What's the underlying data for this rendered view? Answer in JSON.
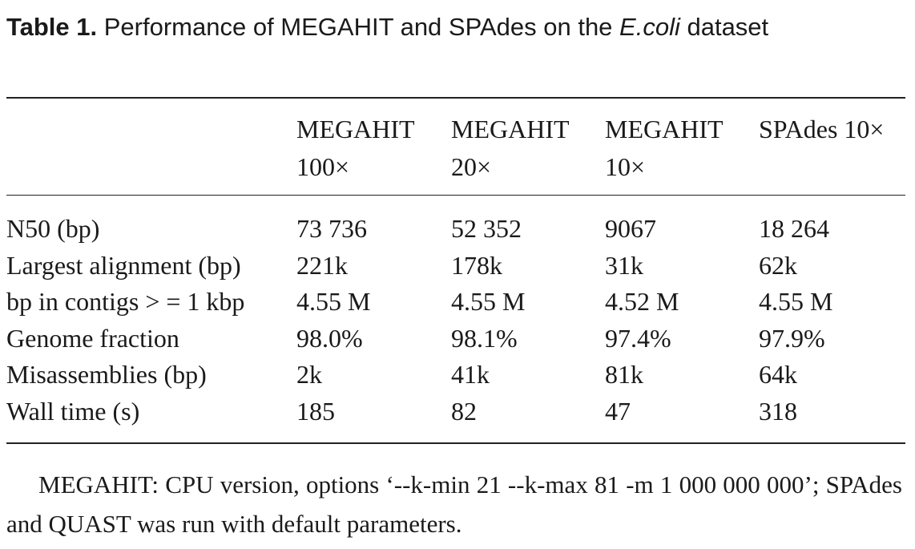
{
  "caption": {
    "label": "Table 1.",
    "text_before": " Performance of MEGAHIT and SPAdes on the ",
    "italic": "E.coli",
    "text_after": " dataset"
  },
  "table": {
    "headers": [
      [
        "",
        ""
      ],
      [
        "MEGAHIT",
        "100×"
      ],
      [
        "MEGAHIT",
        "20×"
      ],
      [
        "MEGAHIT",
        "10×"
      ],
      [
        "SPAdes 10×",
        ""
      ]
    ],
    "rows": [
      [
        "N50 (bp)",
        "73 736",
        "52 352",
        "9067",
        "18 264"
      ],
      [
        "Largest alignment (bp)",
        "221k",
        "178k",
        "31k",
        "62k"
      ],
      [
        "bp in contigs > = 1 kbp",
        "4.55 M",
        "4.55 M",
        "4.52 M",
        "4.55 M"
      ],
      [
        "Genome fraction",
        "98.0%",
        "98.1%",
        "97.4%",
        "97.9%"
      ],
      [
        "Misassemblies (bp)",
        "2k",
        "41k",
        "81k",
        "64k"
      ],
      [
        "Wall time (s)",
        "185",
        "82",
        "47",
        "318"
      ]
    ]
  },
  "footnote": "MEGAHIT: CPU version, options ‘--k-min 21 --k-max 81 -m 1 000 000 000’; SPAdes and QUAST was run with default parameters."
}
